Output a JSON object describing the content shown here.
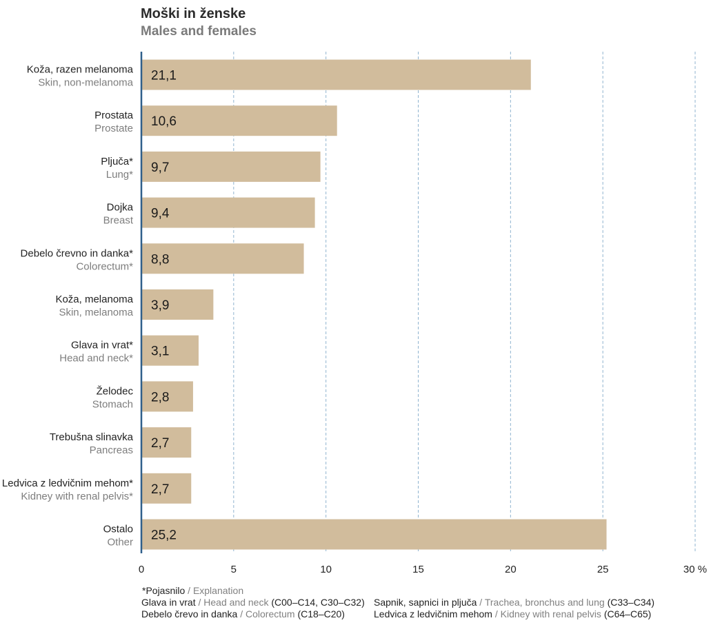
{
  "title": "Moški in ženske",
  "subtitle": "Males and females",
  "chart_data": {
    "type": "bar",
    "orientation": "horizontal",
    "categories": [
      {
        "label": "Koža, razen melanoma",
        "label_en": "Skin, non-melanoma"
      },
      {
        "label": "Prostata",
        "label_en": "Prostate"
      },
      {
        "label": "Pljuča*",
        "label_en": "Lung*"
      },
      {
        "label": "Dojka",
        "label_en": "Breast"
      },
      {
        "label": "Debelo črevno in danka*",
        "label_en": "Colorectum*"
      },
      {
        "label": "Koža, melanoma",
        "label_en": "Skin, melanoma"
      },
      {
        "label": "Glava in vrat*",
        "label_en": "Head and neck*"
      },
      {
        "label": "Želodec",
        "label_en": "Stomach"
      },
      {
        "label": "Trebušna slinavka",
        "label_en": "Pancreas"
      },
      {
        "label": "Ledvica z ledvičnim mehom*",
        "label_en": "Kidney with renal pelvis*"
      },
      {
        "label": "Ostalo",
        "label_en": "Other"
      }
    ],
    "values": [
      21.1,
      10.6,
      9.7,
      9.4,
      8.8,
      3.9,
      3.1,
      2.8,
      2.7,
      2.7,
      25.2
    ],
    "value_labels": [
      "21,1",
      "10,6",
      "9,7",
      "9,4",
      "8,8",
      "3,9",
      "3,1",
      "2,8",
      "2,7",
      "2,7",
      "25,2"
    ],
    "xlim": [
      0,
      30
    ],
    "xticks": [
      "0",
      "5",
      "10",
      "15",
      "20",
      "25",
      "30 %"
    ],
    "grid": "vertical dashed",
    "bar_color": "#d1bc9c",
    "axis_color": "#2f5f8a",
    "grid_color": "#8fb3cf"
  },
  "notes": {
    "header": "*Pojasnilo",
    "header_en": "Explanation",
    "col1": [
      {
        "sl": "Glava in vrat",
        "en": "Head and neck",
        "code": "(C00–C14, C30–C32)"
      },
      {
        "sl": "Debelo črevo in danka",
        "en": "Colorectum",
        "code": "(C18–C20)"
      }
    ],
    "col2": [
      {
        "sl": "Sapnik, sapnici in pljuča",
        "en": "Trachea, bronchus and lung",
        "code": "(C33–C34)"
      },
      {
        "sl": "Ledvica z ledvičnim mehom",
        "en": "Kidney with renal pelvis",
        "code": "(C64–C65)"
      }
    ]
  }
}
